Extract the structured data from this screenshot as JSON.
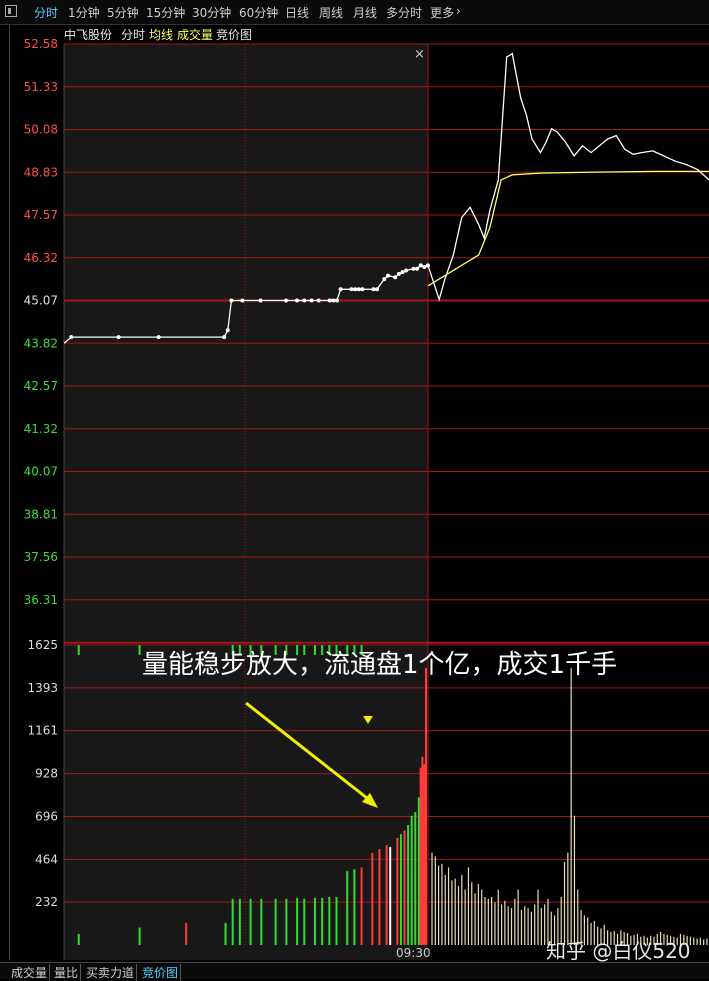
{
  "toolbar": {
    "tabs": [
      {
        "label": "分时",
        "active": true
      },
      {
        "label": "1分钟",
        "active": false
      },
      {
        "label": "5分钟",
        "active": false
      },
      {
        "label": "15分钟",
        "active": false
      },
      {
        "label": "30分钟",
        "active": false
      },
      {
        "label": "60分钟",
        "active": false
      },
      {
        "label": "日线",
        "active": false
      },
      {
        "label": "周线",
        "active": false
      },
      {
        "label": "月线",
        "active": false
      },
      {
        "label": "多分时",
        "active": false
      },
      {
        "label": "更多",
        "active": false
      }
    ],
    "more_icon": "chevron-right-icon"
  },
  "subbar": {
    "stock_name": "中飞股份",
    "items": [
      "分时",
      "均线",
      "成交量",
      "竞价图"
    ]
  },
  "bottom_tabs": [
    "成交量",
    "量比",
    "买卖力道",
    "竞价图"
  ],
  "annotation": "量能稳步放大，流通盘1个亿，成交1千手",
  "watermark": "知乎 @白仪520",
  "close_label": "×",
  "colors": {
    "up": "#ff3b3b",
    "down": "#2fdc2f",
    "grid": "#a01818",
    "price_line": "#ffffff",
    "avg_line": "#ffff66",
    "arrow": "#f0f000"
  },
  "chart_data": {
    "type": "line",
    "price_axis_labels": [
      "52.58",
      "51.33",
      "50.08",
      "48.83",
      "47.57",
      "46.32",
      "45.07",
      "43.82",
      "42.57",
      "41.32",
      "40.07",
      "38.81",
      "37.56",
      "36.31"
    ],
    "price_range": [
      36.31,
      52.58
    ],
    "prev_close": 45.07,
    "volume_axis_labels": [
      "1625",
      "1393",
      "1161",
      "928",
      "696",
      "464",
      "232"
    ],
    "volume_range": [
      0,
      1625
    ],
    "time_label": "09:30",
    "auction_price": {
      "t": [
        0,
        0.02,
        0.15,
        0.26,
        0.44,
        0.45,
        0.46,
        0.49,
        0.54,
        0.61,
        0.64,
        0.66,
        0.68,
        0.7,
        0.73,
        0.74,
        0.75,
        0.76,
        0.79,
        0.8,
        0.81,
        0.82,
        0.85,
        0.86,
        0.88,
        0.89,
        0.91,
        0.92,
        0.93,
        0.94,
        0.96,
        0.97,
        0.98,
        0.99,
        1.0
      ],
      "v": [
        43.82,
        44.0,
        44.0,
        44.0,
        44.0,
        44.2,
        45.07,
        45.07,
        45.07,
        45.07,
        45.07,
        45.07,
        45.07,
        45.07,
        45.07,
        45.07,
        45.07,
        45.4,
        45.4,
        45.4,
        45.4,
        45.4,
        45.4,
        45.4,
        45.7,
        45.8,
        45.75,
        45.85,
        45.9,
        45.95,
        46.0,
        46.0,
        46.1,
        46.05,
        46.1
      ]
    },
    "trade_price": {
      "t": [
        0,
        0.02,
        0.04,
        0.06,
        0.09,
        0.12,
        0.15,
        0.18,
        0.2,
        0.22,
        0.25,
        0.28,
        0.3,
        0.33,
        0.35,
        0.37,
        0.4,
        0.42,
        0.44,
        0.46,
        0.49,
        0.52,
        0.55,
        0.58,
        0.61,
        0.64,
        0.67,
        0.7,
        0.73,
        0.76,
        0.8,
        0.84,
        0.88,
        0.92,
        0.96,
        1.0
      ],
      "v": [
        46.1,
        45.6,
        45.1,
        45.7,
        46.4,
        47.5,
        47.8,
        47.3,
        46.9,
        47.7,
        48.6,
        52.2,
        52.3,
        51.0,
        50.5,
        49.8,
        49.4,
        49.7,
        50.1,
        50.0,
        49.7,
        49.3,
        49.6,
        49.4,
        49.6,
        49.8,
        49.9,
        49.5,
        49.35,
        49.4,
        49.45,
        49.3,
        49.15,
        49.05,
        48.9,
        48.6
      ]
    },
    "trade_avg": {
      "t": [
        0,
        0.06,
        0.12,
        0.18,
        0.22,
        0.26,
        0.3,
        0.4,
        0.6,
        0.8,
        1.0
      ],
      "v": [
        45.5,
        45.8,
        46.1,
        46.4,
        47.2,
        48.6,
        48.75,
        48.8,
        48.83,
        48.85,
        48.85
      ]
    },
    "auction_volume": [
      {
        "t": 0.03,
        "v": 60,
        "dir": "down"
      },
      {
        "t": 0.2,
        "v": 95,
        "dir": "down"
      },
      {
        "t": 0.33,
        "v": 120,
        "dir": "up"
      },
      {
        "t": 0.44,
        "v": 120,
        "dir": "down"
      },
      {
        "t": 0.46,
        "v": 250,
        "dir": "down"
      },
      {
        "t": 0.48,
        "v": 250,
        "dir": "down"
      },
      {
        "t": 0.51,
        "v": 250,
        "dir": "down"
      },
      {
        "t": 0.54,
        "v": 250,
        "dir": "down"
      },
      {
        "t": 0.58,
        "v": 250,
        "dir": "down"
      },
      {
        "t": 0.61,
        "v": 250,
        "dir": "down"
      },
      {
        "t": 0.64,
        "v": 255,
        "dir": "down"
      },
      {
        "t": 0.66,
        "v": 250,
        "dir": "down"
      },
      {
        "t": 0.69,
        "v": 255,
        "dir": "down"
      },
      {
        "t": 0.71,
        "v": 255,
        "dir": "down"
      },
      {
        "t": 0.73,
        "v": 260,
        "dir": "down"
      },
      {
        "t": 0.75,
        "v": 260,
        "dir": "down"
      },
      {
        "t": 0.78,
        "v": 400,
        "dir": "down"
      },
      {
        "t": 0.8,
        "v": 410,
        "dir": "down"
      },
      {
        "t": 0.82,
        "v": 420,
        "dir": "up"
      },
      {
        "t": 0.85,
        "v": 500,
        "dir": "up"
      },
      {
        "t": 0.87,
        "v": 520,
        "dir": "up"
      },
      {
        "t": 0.89,
        "v": 540,
        "dir": "up"
      },
      {
        "t": 0.9,
        "v": 530,
        "dir": "neutral"
      },
      {
        "t": 0.92,
        "v": 580,
        "dir": "up"
      },
      {
        "t": 0.93,
        "v": 600,
        "dir": "down"
      },
      {
        "t": 0.94,
        "v": 620,
        "dir": "up"
      },
      {
        "t": 0.95,
        "v": 650,
        "dir": "down"
      },
      {
        "t": 0.96,
        "v": 700,
        "dir": "down"
      },
      {
        "t": 0.97,
        "v": 720,
        "dir": "down"
      },
      {
        "t": 0.98,
        "v": 800,
        "dir": "down"
      },
      {
        "t": 0.985,
        "v": 960,
        "dir": "up"
      },
      {
        "t": 0.99,
        "v": 1020,
        "dir": "up"
      },
      {
        "t": 0.995,
        "v": 980,
        "dir": "up"
      },
      {
        "t": 1.0,
        "v": 1500,
        "dir": "up"
      }
    ],
    "auction_top_marks": [
      0.03,
      0.2,
      0.46,
      0.48,
      0.51,
      0.54,
      0.58,
      0.61,
      0.64,
      0.66,
      0.69,
      0.71,
      0.73,
      0.75,
      0.78,
      0.8,
      0.82
    ],
    "trade_volume": [
      500,
      480,
      430,
      440,
      380,
      420,
      350,
      360,
      320,
      380,
      300,
      420,
      340,
      280,
      330,
      300,
      260,
      250,
      260,
      230,
      300,
      220,
      240,
      210,
      200,
      250,
      300,
      190,
      210,
      200,
      180,
      220,
      300,
      200,
      220,
      250,
      180,
      160,
      200,
      260,
      450,
      500,
      1500,
      700,
      300,
      190,
      160,
      150,
      120,
      130,
      100,
      90,
      110,
      80,
      70,
      75,
      60,
      80,
      70,
      65,
      50,
      55,
      60,
      45,
      50,
      40,
      50,
      45,
      60,
      70,
      60,
      55,
      50,
      45,
      40,
      60,
      55,
      50,
      45,
      40,
      35,
      40,
      30,
      35
    ]
  }
}
